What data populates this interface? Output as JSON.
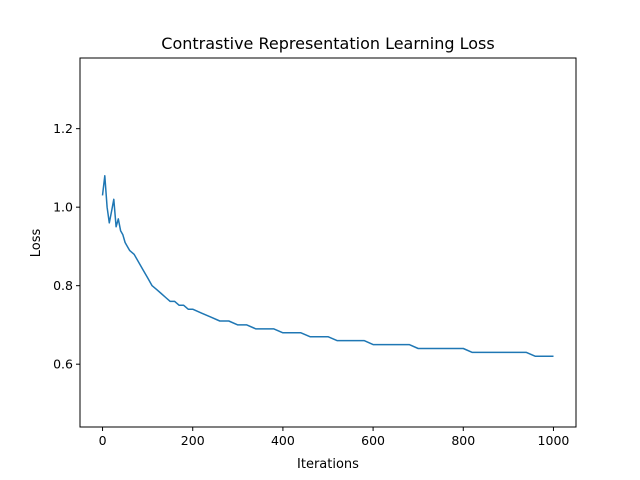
{
  "chart_data": {
    "type": "line",
    "title": "Contrastive Representation Learning Loss",
    "xlabel": "Iterations",
    "ylabel": "Loss",
    "xlim": [
      -50,
      1050
    ],
    "ylim": [
      0.44,
      1.38
    ],
    "xticks": [
      0,
      200,
      400,
      600,
      800,
      1000
    ],
    "xtick_labels": [
      "0",
      "200",
      "400",
      "600",
      "800",
      "1000"
    ],
    "yticks": [
      0.6,
      0.8,
      1.0,
      1.2
    ],
    "ytick_labels": [
      "0.6",
      "0.8",
      "1.0",
      "1.2"
    ],
    "grid": false,
    "series": [
      {
        "color": "#1f77b4",
        "x": [
          0,
          5,
          10,
          15,
          20,
          25,
          30,
          35,
          40,
          45,
          50,
          60,
          70,
          80,
          90,
          100,
          110,
          120,
          130,
          140,
          150,
          160,
          170,
          180,
          190,
          200,
          220,
          240,
          260,
          280,
          300,
          320,
          340,
          360,
          380,
          400,
          420,
          440,
          460,
          480,
          500,
          520,
          540,
          560,
          580,
          600,
          620,
          640,
          660,
          680,
          700,
          720,
          740,
          760,
          780,
          800,
          820,
          840,
          860,
          880,
          900,
          920,
          940,
          960,
          980,
          1000
        ],
        "y": [
          1.03,
          1.08,
          1.0,
          0.96,
          0.99,
          1.02,
          0.95,
          0.97,
          0.94,
          0.93,
          0.91,
          0.89,
          0.88,
          0.86,
          0.84,
          0.82,
          0.8,
          0.79,
          0.78,
          0.77,
          0.76,
          0.76,
          0.75,
          0.75,
          0.74,
          0.74,
          0.73,
          0.72,
          0.71,
          0.71,
          0.7,
          0.7,
          0.69,
          0.69,
          0.69,
          0.68,
          0.68,
          0.68,
          0.67,
          0.67,
          0.67,
          0.66,
          0.66,
          0.66,
          0.66,
          0.65,
          0.65,
          0.65,
          0.65,
          0.65,
          0.64,
          0.64,
          0.64,
          0.64,
          0.64,
          0.64,
          0.63,
          0.63,
          0.63,
          0.63,
          0.63,
          0.63,
          0.63,
          0.62,
          0.62,
          0.62
        ]
      }
    ]
  }
}
